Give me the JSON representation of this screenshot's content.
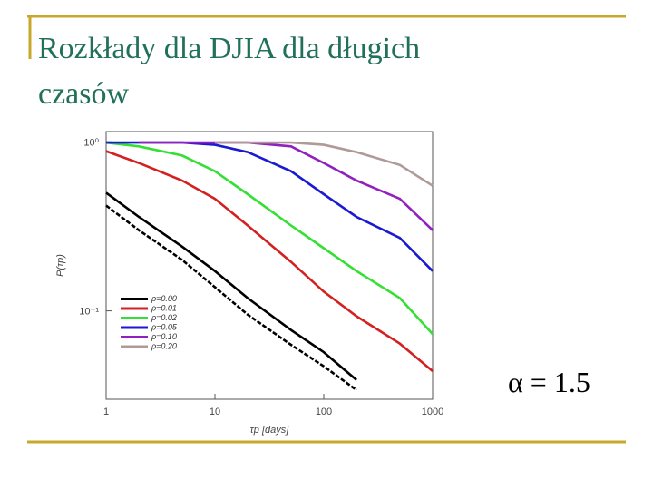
{
  "slide_title": "Rozkłady dla DJIA dla długich czasów",
  "annotation": "α = 1.5",
  "chart_data": {
    "type": "line",
    "x_label": "τp [days]",
    "y_label": "P(τp)",
    "xscale": "log",
    "yscale": "log",
    "xlim": [
      1,
      1000
    ],
    "ylim": [
      0.03,
      1.15
    ],
    "xticks": [
      1,
      10,
      100,
      1000
    ],
    "yticks": [
      {
        "value": 1,
        "label": "10⁰"
      },
      {
        "value": 0.1,
        "label": "10⁻¹"
      }
    ],
    "legend": "lower left",
    "x": [
      1,
      2,
      5,
      10,
      20,
      50,
      100,
      200,
      500,
      1000
    ],
    "series": [
      {
        "name": "ρ=0.00",
        "color": "#000000",
        "values": [
          0.5,
          0.36,
          0.24,
          0.172,
          0.119,
          0.077,
          0.057,
          0.039,
          null,
          null
        ]
      },
      {
        "name": "ρ=0.01",
        "color": "#d42020",
        "values": [
          0.88,
          0.75,
          0.59,
          0.46,
          0.32,
          0.195,
          0.13,
          0.093,
          0.064,
          0.044
        ]
      },
      {
        "name": "ρ=0.02",
        "color": "#33e033",
        "values": [
          0.99,
          0.94,
          0.83,
          0.67,
          0.49,
          0.32,
          0.235,
          0.172,
          0.119,
          0.073
        ]
      },
      {
        "name": "ρ=0.05",
        "color": "#1a1ad0",
        "values": [
          0.99,
          0.99,
          0.99,
          0.96,
          0.87,
          0.67,
          0.49,
          0.36,
          0.27,
          0.172
        ]
      },
      {
        "name": "ρ=0.10",
        "color": "#9020c0",
        "values": [
          null,
          0.99,
          0.99,
          0.99,
          0.99,
          0.94,
          0.75,
          0.59,
          0.46,
          0.3
        ]
      },
      {
        "name": "ρ=0.20",
        "color": "#b09a98",
        "values": [
          null,
          null,
          null,
          0.99,
          0.99,
          0.99,
          0.96,
          0.87,
          0.73,
          0.55
        ]
      },
      {
        "color": "#000000",
        "dash": true,
        "values": [
          0.42,
          0.3,
          0.2,
          0.138,
          0.095,
          0.063,
          0.047,
          0.034,
          null,
          null
        ]
      }
    ]
  }
}
